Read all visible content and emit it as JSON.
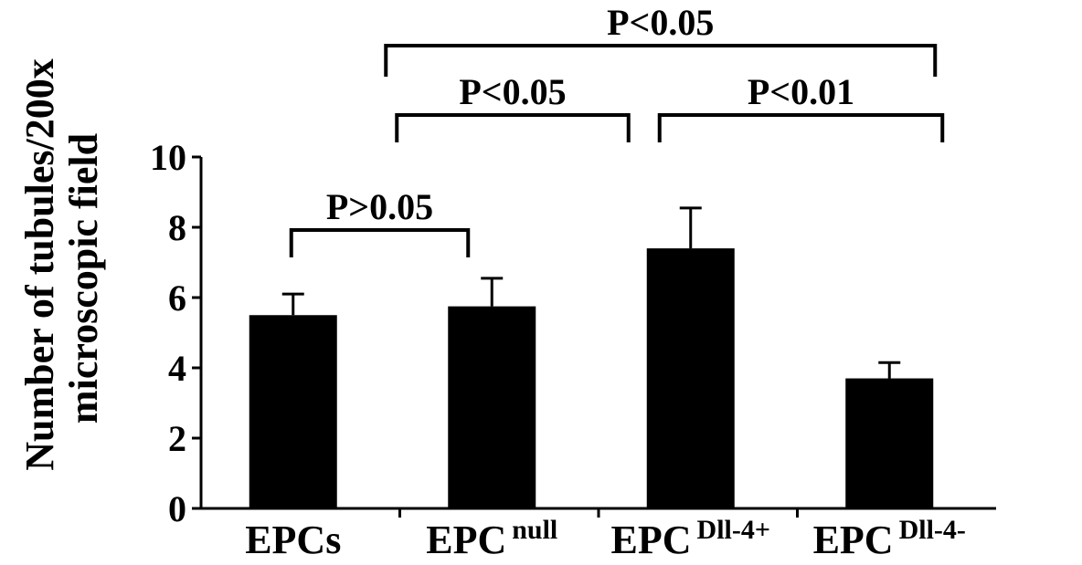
{
  "chart_data": {
    "type": "bar",
    "ylabel_lines": [
      "Number of tubules/200x",
      "microscopic field"
    ],
    "categories": [
      {
        "base": "EPCs",
        "sup": ""
      },
      {
        "base": "EPC",
        "sup": "null"
      },
      {
        "base": "EPC",
        "sup": "Dll-4+"
      },
      {
        "base": "EPC",
        "sup": "Dll-4-"
      }
    ],
    "values": [
      5.5,
      5.75,
      7.4,
      3.7
    ],
    "errors": [
      0.6,
      0.8,
      1.15,
      0.45
    ],
    "ylim": [
      0,
      10
    ],
    "yticks": [
      0,
      2,
      4,
      6,
      8,
      10
    ],
    "grid": false,
    "legend": "none",
    "bar_color": "#000000",
    "comparisons": [
      {
        "from": 0,
        "to": 1,
        "label": "P>0.05"
      },
      {
        "from": 1,
        "to": 2,
        "label": "P<0.05"
      },
      {
        "from": 2,
        "to": 3,
        "label": "P<0.01"
      },
      {
        "from": 1,
        "to": 3,
        "label": "P<0.05"
      }
    ]
  }
}
